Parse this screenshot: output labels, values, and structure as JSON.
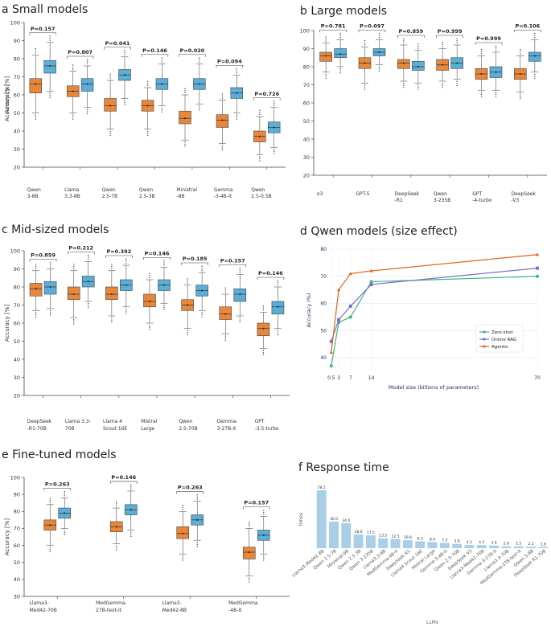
{
  "colors": {
    "orange": "#e8873a",
    "blue": "#5aaed8",
    "orange_line": "#e0651f",
    "purple": "#7b6fd0",
    "green": "#3fb67a",
    "resp_bar": "#a9cfe8"
  },
  "chart_data": [
    {
      "id": "a",
      "type": "box",
      "title": "a Small models",
      "ylabel": "Accuracy [%]",
      "ylim": [
        20,
        100
      ],
      "yticks": [
        20,
        30,
        40,
        50,
        60,
        70,
        80,
        90,
        100
      ],
      "series_names": [
        "Zero-shot",
        "Online RAG"
      ],
      "groups": [
        {
          "label": [
            "Qwen",
            "3-8B"
          ],
          "p": "P=0.157",
          "boxes": [
            [
              50,
              61,
              66,
              69,
              82
            ],
            [
              62,
              72,
              76,
              79,
              89
            ]
          ]
        },
        {
          "label": [
            "Llama",
            "3.3-8B"
          ],
          "p": "P=0.807",
          "boxes": [
            [
              50,
              59,
              62,
              65,
              73
            ],
            [
              53,
              62,
              66,
              69,
              76
            ]
          ]
        },
        {
          "label": [
            "Qwen",
            "2.5-7B"
          ],
          "p": "P=0.041",
          "boxes": [
            [
              41,
              51,
              54,
              58,
              68
            ],
            [
              58,
              68,
              71,
              74,
              81
            ]
          ]
        },
        {
          "label": [
            "Qwen",
            "2.5-3B"
          ],
          "p": "P=0.146",
          "boxes": [
            [
              41,
              51,
              54,
              57,
              64
            ],
            [
              54,
              63,
              66,
              69,
              77
            ]
          ]
        },
        {
          "label": [
            "Ministral",
            "-8B"
          ],
          "p": "P=0.020",
          "boxes": [
            [
              35,
              44,
              47,
              51,
              60
            ],
            [
              55,
              63,
              66,
              69,
              77
            ]
          ]
        },
        {
          "label": [
            "Gemma",
            "-3-4B-it"
          ],
          "p": "P=0.094",
          "boxes": [
            [
              33,
              42,
              46,
              49,
              57
            ],
            [
              50,
              58,
              61,
              64,
              71
            ]
          ]
        },
        {
          "label": [
            "Qwen",
            "2.5-0.5B"
          ],
          "p": "P=0.726",
          "boxes": [
            [
              27,
              34,
              37,
              40,
              48
            ],
            [
              31,
              39,
              42,
              45,
              53
            ]
          ]
        }
      ]
    },
    {
      "id": "b",
      "type": "box",
      "title": "b Large models",
      "ylabel": "Accuracy [%]",
      "ylim": [
        20,
        100
      ],
      "yticks": [
        20,
        30,
        40,
        50,
        60,
        70,
        80,
        90,
        100
      ],
      "series_names": [
        "Zero-shot",
        "Online RAG"
      ],
      "groups": [
        {
          "label": [
            "o3",
            ""
          ],
          "p": "P=0.781",
          "boxes": [
            [
              77,
              83,
              86,
              88,
              93
            ],
            [
              80,
              85,
              87,
              90,
              95
            ]
          ]
        },
        {
          "label": [
            "GPT-5",
            ""
          ],
          "p": "P=0.097",
          "boxes": [
            [
              71,
              79,
              82,
              85,
              91
            ],
            [
              81,
              86,
              88,
              90,
              95
            ]
          ]
        },
        {
          "label": [
            "DeepSeek",
            "-R1"
          ],
          "p": "P=0.859",
          "boxes": [
            [
              72,
              79,
              82,
              84,
              92
            ],
            [
              71,
              78,
              80,
              83,
              89
            ]
          ]
        },
        {
          "label": [
            "Qwen",
            "3-235B"
          ],
          "p": "P=0.999",
          "boxes": [
            [
              72,
              78,
              81,
              84,
              90
            ],
            [
              73,
              79,
              82,
              85,
              92
            ]
          ]
        },
        {
          "label": [
            "GPT",
            "-4-turbo"
          ],
          "p": "P=0.999",
          "boxes": [
            [
              67,
              73,
              76,
              79,
              86
            ],
            [
              67,
              74,
              77,
              80,
              88
            ]
          ]
        },
        {
          "label": [
            "DeepSeek",
            "-V3"
          ],
          "p": "P=0.106",
          "boxes": [
            [
              66,
              73,
              76,
              79,
              86
            ],
            [
              77,
              83,
              86,
              88,
              95
            ]
          ]
        }
      ]
    },
    {
      "id": "c",
      "type": "box",
      "title": "c Mid-sized models",
      "ylabel": "Accuracy [%]",
      "ylim": [
        20,
        100
      ],
      "yticks": [
        20,
        30,
        40,
        50,
        60,
        70,
        80,
        90,
        100
      ],
      "series_names": [
        "Zero-shot",
        "Online RAG"
      ],
      "groups": [
        {
          "label": [
            "DeepSeek",
            "-R1-70B"
          ],
          "p": "P=0.859",
          "boxes": [
            [
              67,
              75,
              79,
              82,
              89
            ],
            [
              68,
              76,
              80,
              83,
              90
            ]
          ]
        },
        {
          "label": [
            "Llama 3.3-",
            "70B"
          ],
          "p": "P=0.212",
          "boxes": [
            [
              63,
              73,
              76,
              80,
              89
            ],
            [
              72,
              80,
              83,
              86,
              94
            ]
          ]
        },
        {
          "label": [
            "Llama 4",
            "Scout 16E"
          ],
          "p": "P=0.392",
          "boxes": [
            [
              64,
              73,
              76,
              80,
              89
            ],
            [
              69,
              78,
              81,
              84,
              92
            ]
          ]
        },
        {
          "label": [
            "Mistral",
            "Large"
          ],
          "p": "P=0.146",
          "boxes": [
            [
              60,
              69,
              72,
              76,
              84
            ],
            [
              71,
              78,
              81,
              84,
              91
            ]
          ]
        },
        {
          "label": [
            "Qwen",
            "2.5-70B"
          ],
          "p": "P=0.185",
          "boxes": [
            [
              57,
              67,
              70,
              73,
              81
            ],
            [
              67,
              75,
              78,
              81,
              88
            ]
          ]
        },
        {
          "label": [
            "Gemma-",
            "3-27B-it"
          ],
          "p": "P=0.157",
          "boxes": [
            [
              54,
              62,
              65,
              69,
              76
            ],
            [
              64,
              72,
              76,
              79,
              87
            ]
          ]
        },
        {
          "label": [
            "GPT",
            "-3.5-turbo"
          ],
          "p": "P=0.146",
          "boxes": [
            [
              46,
              53,
              57,
              60,
              66
            ],
            [
              57,
              65,
              69,
              72,
              80
            ]
          ]
        }
      ]
    },
    {
      "id": "d",
      "type": "line",
      "title": "d Qwen models (size effect)",
      "xlabel": "Model size (billions of parameters)",
      "ylabel": "Accuracy (%)",
      "xlim": [
        0,
        70
      ],
      "ylim": [
        35,
        80
      ],
      "xticks": [
        0.5,
        3,
        7,
        14,
        70
      ],
      "xtick_labels": [
        "0.5",
        "3",
        "7",
        "14",
        "70"
      ],
      "yticks": [
        40,
        50,
        60,
        70,
        80
      ],
      "x": [
        0.5,
        3,
        7,
        14,
        70
      ],
      "series": [
        {
          "name": "Zero-shot",
          "values": [
            37,
            53,
            55,
            68,
            70
          ]
        },
        {
          "name": "Online RAG",
          "values": [
            46,
            54,
            59,
            67,
            73
          ]
        },
        {
          "name": "Agentic",
          "values": [
            42,
            65,
            71,
            72,
            78
          ]
        }
      ],
      "legend_position": "bottom-right"
    },
    {
      "id": "e",
      "type": "box",
      "title": "e Fine-tuned models",
      "ylabel": "Accuracy [%]",
      "ylim": [
        30,
        100
      ],
      "yticks": [
        30,
        40,
        50,
        60,
        70,
        80,
        90,
        100
      ],
      "series_names": [
        "Zero-shot",
        "Online RAG"
      ],
      "groups": [
        {
          "label": [
            "Llama3-",
            "Med42-70B"
          ],
          "p": "P=0.263",
          "boxes": [
            [
              60,
              69,
              72,
              75,
              84
            ],
            [
              70,
              76,
              79,
              82,
              88
            ]
          ]
        },
        {
          "label": [
            "MedGemma-",
            "27B-text-it"
          ],
          "p": "P=0.146",
          "boxes": [
            [
              61,
              68,
              71,
              74,
              82
            ],
            [
              69,
              78,
              81,
              84,
              92
            ]
          ]
        },
        {
          "label": [
            "Llama3-",
            "Med42-8B"
          ],
          "p": "P=0.263",
          "boxes": [
            [
              55,
              64,
              67,
              71,
              80
            ],
            [
              63,
              72,
              75,
              78,
              86
            ]
          ]
        },
        {
          "label": [
            "MedGemma",
            "-4B-it"
          ],
          "p": "P=0.157",
          "boxes": [
            [
              42,
              52,
              56,
              59,
              70
            ],
            [
              55,
              63,
              66,
              69,
              77
            ]
          ]
        }
      ]
    },
    {
      "id": "f",
      "type": "bar",
      "title": "f Response time",
      "xlabel": "LLMs",
      "ylabel": "times",
      "categories": [
        "Llama3-Med42-8B",
        "Qwen 2.5-7B",
        "Ministral-8B",
        "Qwen 2.5-3B",
        "Qwen 3-235B",
        "Llama3.3-8B",
        "MedGemma-4B-it",
        "DeepSeek R1",
        "Llama4 Scout 16E",
        "Mistral Large",
        "Gemma-3-4B-it",
        "Qwen 2.5-70B",
        "DeepSeek V3",
        "Llama3-Med42-70B",
        "Gemma-3-27B-it",
        "Llama3.3-70B",
        "MedGemma-27B-text-it",
        "Qwen 3-8B",
        "DeepSeek R1-70B"
      ],
      "values": [
        78.5,
        36.0,
        34.0,
        18.6,
        17.5,
        13.5,
        12.5,
        10.8,
        9.3,
        8.4,
        7.3,
        5.8,
        4.2,
        4.2,
        3.6,
        2.6,
        2.5,
        2.1,
        1.8
      ],
      "value_labels": [
        "78.5",
        "36.0",
        "34.0",
        "18.6",
        "17.5",
        "13.5",
        "12.5",
        "10.8",
        "9.3",
        "8.4",
        "7.3",
        "5.8",
        "4.2",
        "4.2",
        "3.6",
        "2.6",
        "2.5",
        "2.1",
        "1.8"
      ],
      "ylim": [
        0,
        85
      ]
    }
  ]
}
